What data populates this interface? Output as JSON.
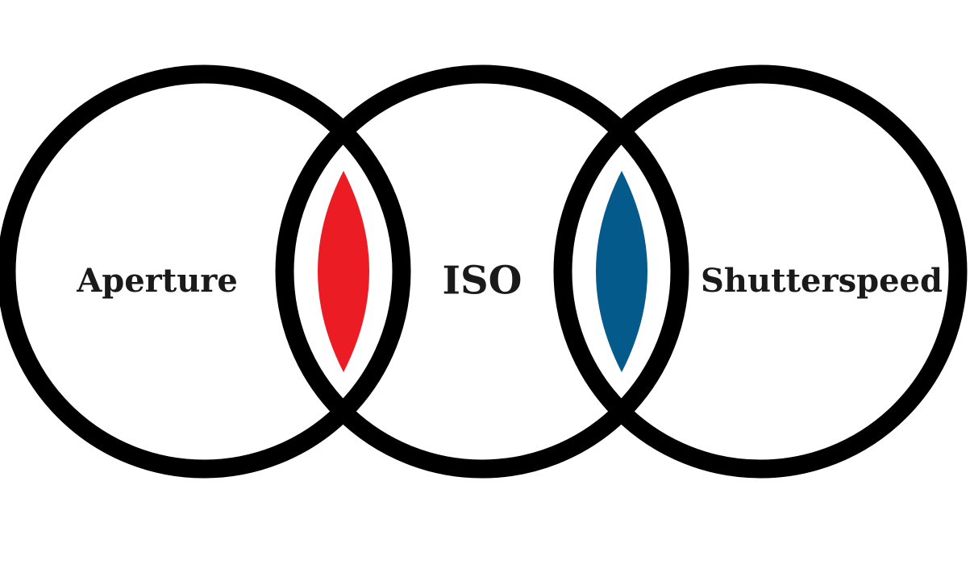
{
  "circles": [
    {
      "id": "aperture",
      "label": "Aperture"
    },
    {
      "id": "iso",
      "label": "ISO"
    },
    {
      "id": "shutterspeed",
      "label": "Shutterspeed"
    }
  ],
  "overlaps": [
    {
      "id": "aperture-iso",
      "color": "#ec1c24"
    },
    {
      "id": "iso-shutterspeed",
      "color": "#045a8a"
    }
  ],
  "ring_color": "#000000"
}
